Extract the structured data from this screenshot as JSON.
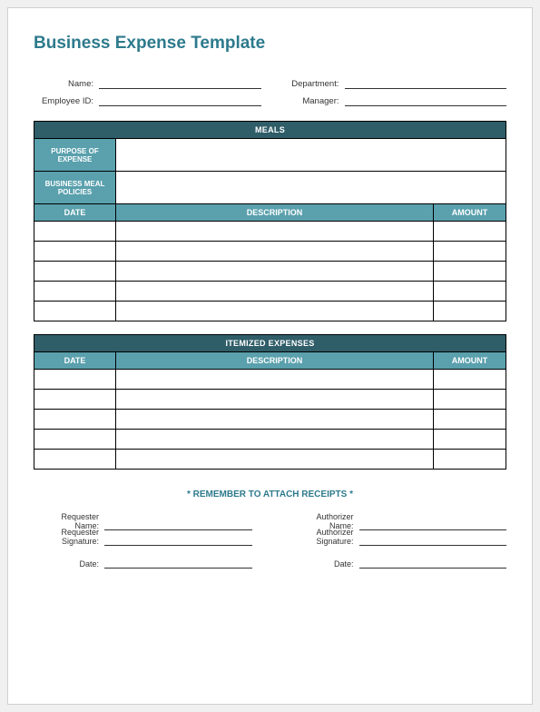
{
  "title": "Business Expense Template",
  "info": {
    "left": [
      {
        "label": "Name:"
      },
      {
        "label": "Employee ID:"
      }
    ],
    "right": [
      {
        "label": "Department:"
      },
      {
        "label": "Manager:"
      }
    ]
  },
  "meals": {
    "section_title": "MEALS",
    "purpose_label": "PURPOSE OF EXPENSE",
    "policies_label": "BUSINESS MEAL POLICIES",
    "columns": {
      "date": "DATE",
      "description": "DESCRIPTION",
      "amount": "AMOUNT"
    },
    "row_count": 5
  },
  "itemized": {
    "section_title": "ITEMIZED EXPENSES",
    "columns": {
      "date": "DATE",
      "description": "DESCRIPTION",
      "amount": "AMOUNT"
    },
    "row_count": 5
  },
  "receipts_note": "* REMEMBER TO ATTACH RECEIPTS *",
  "signatures": {
    "requester": {
      "name_label": "Requester Name:",
      "sig_label": "Requester Signature:",
      "date_label": "Date:"
    },
    "authorizer": {
      "name_label": "Authorizer Name:",
      "sig_label": "Authorizer Signature:",
      "date_label": "Date:"
    }
  },
  "colors": {
    "accent": "#2d7a8c",
    "section_header_bg": "#2f5d68",
    "col_header_bg": "#5aa0ad",
    "border": "#000000"
  }
}
